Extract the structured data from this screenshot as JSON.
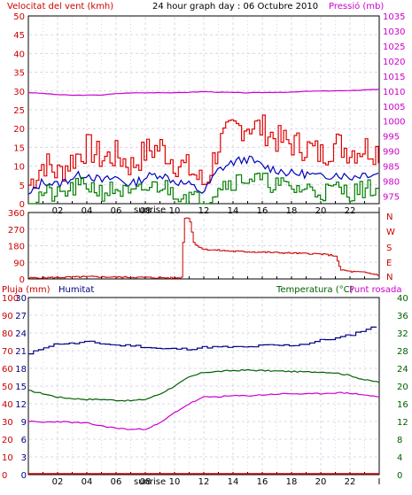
{
  "header": {
    "wind_title": "Velocitat del vent (kmh)",
    "graph_title": "24 hour graph day : 06 Octubre 2010",
    "pressure_title": "Pressió (mb)"
  },
  "middle": {
    "directions": [
      "N",
      "W",
      "S",
      "E",
      "N"
    ]
  },
  "bottom_header": {
    "rain_title": "Pluja (mm)",
    "humidity_title": "Humitat",
    "temp_title": "Temperatura (°C)",
    "dew_title": "Punt rosada"
  },
  "x_ticks": [
    "02",
    "04",
    "06",
    "08",
    "10",
    "12",
    "14",
    "16",
    "18",
    "20",
    "22"
  ],
  "sunrise_label": "sunrise",
  "colors": {
    "wind": "#e00000",
    "avg_wind": "#0000c0",
    "min_wind": "#008000",
    "pressure": "#cc00cc",
    "direction": "#cc0000",
    "humidity": "#000080",
    "temperature": "#006000",
    "dew": "#cc00cc",
    "rain": "#cc0000",
    "axis_left": "#cc0000",
    "axis_right_top": "#cc00cc",
    "axis_humidity": "#000080",
    "axis_temp": "#006000",
    "grid": "#d8d8e8"
  },
  "chart_data": [
    {
      "type": "line",
      "title": "24 hour graph day : 06 Octubre 2010",
      "ylabel": "Velocitat del vent (kmh)",
      "y2label": "Pressió (mb)",
      "ylim": [
        0,
        50
      ],
      "y_ticks": [
        0,
        5,
        10,
        15,
        20,
        25,
        30,
        35,
        40,
        45,
        50
      ],
      "y2lim": [
        972.5,
        1035
      ],
      "y2_ticks": [
        975,
        980,
        985,
        990,
        995,
        1000,
        1005,
        1010,
        1015,
        1020,
        1025,
        1030,
        1035
      ],
      "x_hours": [
        0,
        1,
        2,
        3,
        4,
        5,
        6,
        7,
        8,
        9,
        10,
        11,
        12,
        13,
        14,
        15,
        16,
        17,
        18,
        19,
        20,
        21,
        22,
        23,
        24
      ],
      "series": [
        {
          "values": [
            5,
            11,
            8,
            12,
            15,
            12,
            13,
            10,
            14,
            15,
            11,
            9,
            5,
            16,
            20,
            21,
            20,
            17,
            16,
            15,
            13,
            16,
            14,
            15,
            14
          ]
        },
        {
          "values": [
            2,
            6,
            5,
            7,
            8,
            6,
            7,
            5,
            7,
            8,
            6,
            5,
            3,
            9,
            11,
            12,
            10,
            9,
            8,
            8,
            7,
            8,
            7,
            8,
            8
          ]
        },
        {
          "values": [
            0,
            3,
            2,
            4,
            5,
            3,
            4,
            2,
            4,
            5,
            3,
            2,
            0,
            5,
            6,
            7,
            6,
            5,
            4,
            4,
            3,
            4,
            3,
            4,
            4
          ]
        },
        {
          "values": [
            1009.5,
            1009.2,
            1008.8,
            1008.6,
            1008.6,
            1008.7,
            1009.1,
            1009.4,
            1009.4,
            1009.5,
            1009.4,
            1009.6,
            1009.8,
            1009.6,
            1009.5,
            1009.4,
            1009.5,
            1009.6,
            1009.6,
            1009.9,
            1010.0,
            1010.1,
            1010.1,
            1010.4,
            1010.6
          ]
        }
      ]
    },
    {
      "type": "line",
      "y_ticks": [
        0,
        90,
        180,
        270,
        360
      ],
      "ylim": [
        0,
        360
      ],
      "x_hours": [
        0,
        2,
        4,
        6,
        8,
        10,
        10.5,
        10.6,
        11,
        11.3,
        12,
        14,
        16,
        18,
        20,
        21,
        21.3,
        22,
        23,
        24
      ],
      "series": [
        {
          "values": [
            5,
            8,
            12,
            10,
            8,
            5,
            8,
            330,
            330,
            190,
            160,
            150,
            145,
            140,
            135,
            125,
            50,
            40,
            35,
            20
          ]
        }
      ]
    },
    {
      "type": "line",
      "y_ticks": [
        0,
        3,
        6,
        9,
        12,
        15,
        18,
        21,
        24,
        27,
        30
      ],
      "ylim": [
        0,
        30
      ],
      "y2_ticks": [
        0,
        10,
        20,
        30,
        40,
        50,
        60,
        70,
        80,
        90,
        100
      ],
      "y3_ticks": [
        0,
        4,
        8,
        12,
        16,
        20,
        24,
        28,
        32,
        36,
        40
      ],
      "y3lim": [
        0,
        40
      ],
      "x_hours": [
        0,
        1,
        2,
        3,
        4,
        5,
        6,
        7,
        8,
        9,
        10,
        11,
        12,
        13,
        14,
        15,
        16,
        17,
        18,
        19,
        20,
        21,
        22,
        23,
        24
      ],
      "series": [
        {
          "values": [
            68,
            72,
            74,
            74,
            75,
            74,
            73,
            73,
            72,
            71,
            71,
            71,
            72,
            72,
            72,
            72,
            73,
            73,
            73,
            74,
            76,
            77,
            79,
            82,
            84
          ]
        },
        {
          "values": [
            19.0,
            18.3,
            17.5,
            17.2,
            17.0,
            17.0,
            16.8,
            16.7,
            17.0,
            18.2,
            20.0,
            22.0,
            23.1,
            23.3,
            23.5,
            23.6,
            23.5,
            23.4,
            23.3,
            23.2,
            23.2,
            23.0,
            22.4,
            21.4,
            20.9
          ]
        },
        {
          "values": [
            12.0,
            11.8,
            12.0,
            11.8,
            11.6,
            11.0,
            10.5,
            10.2,
            10.3,
            11.6,
            14.0,
            16.0,
            17.5,
            17.6,
            17.8,
            17.8,
            18.0,
            18.2,
            18.3,
            18.2,
            18.3,
            18.5,
            18.4,
            18.0,
            17.5
          ]
        },
        {
          "values": [
            0,
            0,
            0,
            0,
            0,
            0,
            0,
            0,
            0,
            0,
            0,
            0,
            0,
            0,
            0,
            0,
            0,
            0,
            0,
            0,
            0,
            0,
            0,
            0,
            0
          ]
        }
      ]
    }
  ]
}
